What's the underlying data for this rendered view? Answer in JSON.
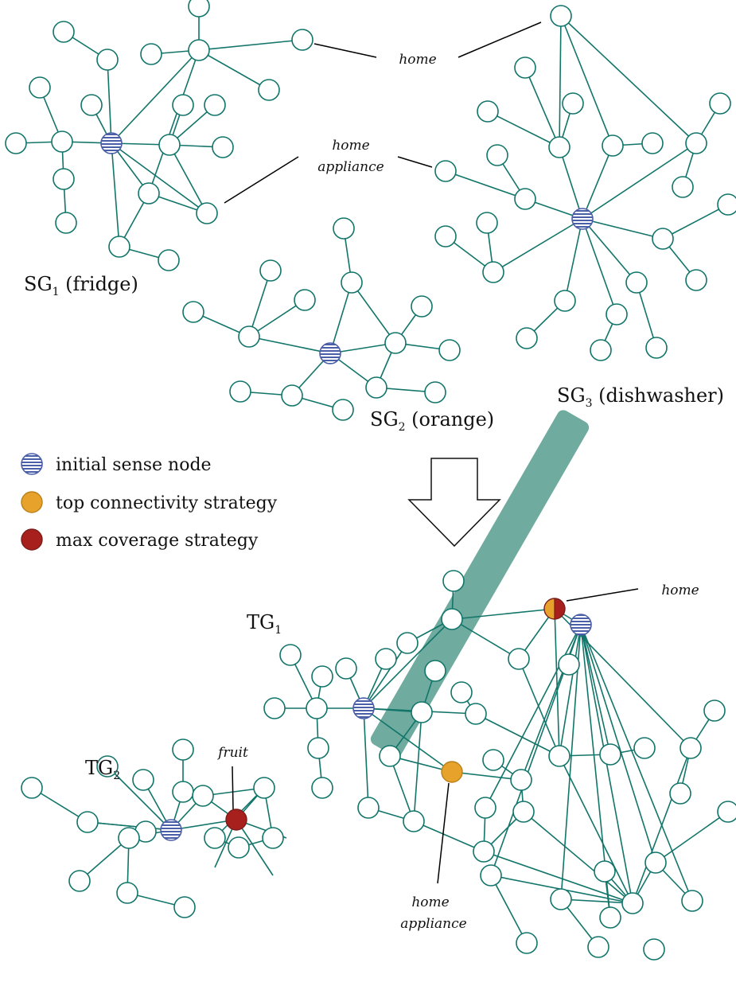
{
  "colors": {
    "edge": "#12756a",
    "sense_stripe": "#4a5fa8",
    "top_connectivity": "#e6a22a",
    "max_coverage": "#a8201e",
    "highlight_band": "#6fab9e"
  },
  "source_graphs": [
    {
      "base": "SG",
      "index": "1",
      "suffix": " (fridge)"
    },
    {
      "base": "SG",
      "index": "2",
      "suffix": " (orange)"
    },
    {
      "base": "SG",
      "index": "3",
      "suffix": " (dishwasher)"
    }
  ],
  "target_graphs": [
    {
      "base": "TG",
      "index": "1"
    },
    {
      "base": "TG",
      "index": "2"
    }
  ],
  "annotations": {
    "top_home": "home",
    "top_home_appliance_line1": "home",
    "top_home_appliance_line2": "appliance",
    "tg1_home": "home",
    "tg1_home_appliance_line1": "home",
    "tg1_home_appliance_line2": "appliance",
    "tg2_fruit": "fruit"
  },
  "legend": [
    {
      "label": "initial sense node",
      "icon": "striped-circle-icon"
    },
    {
      "label": "top connectivity strategy",
      "icon": "orange-circle-icon"
    },
    {
      "label": "max coverage strategy",
      "icon": "red-circle-icon"
    }
  ],
  "transition_arrow": "down-arrow-icon"
}
